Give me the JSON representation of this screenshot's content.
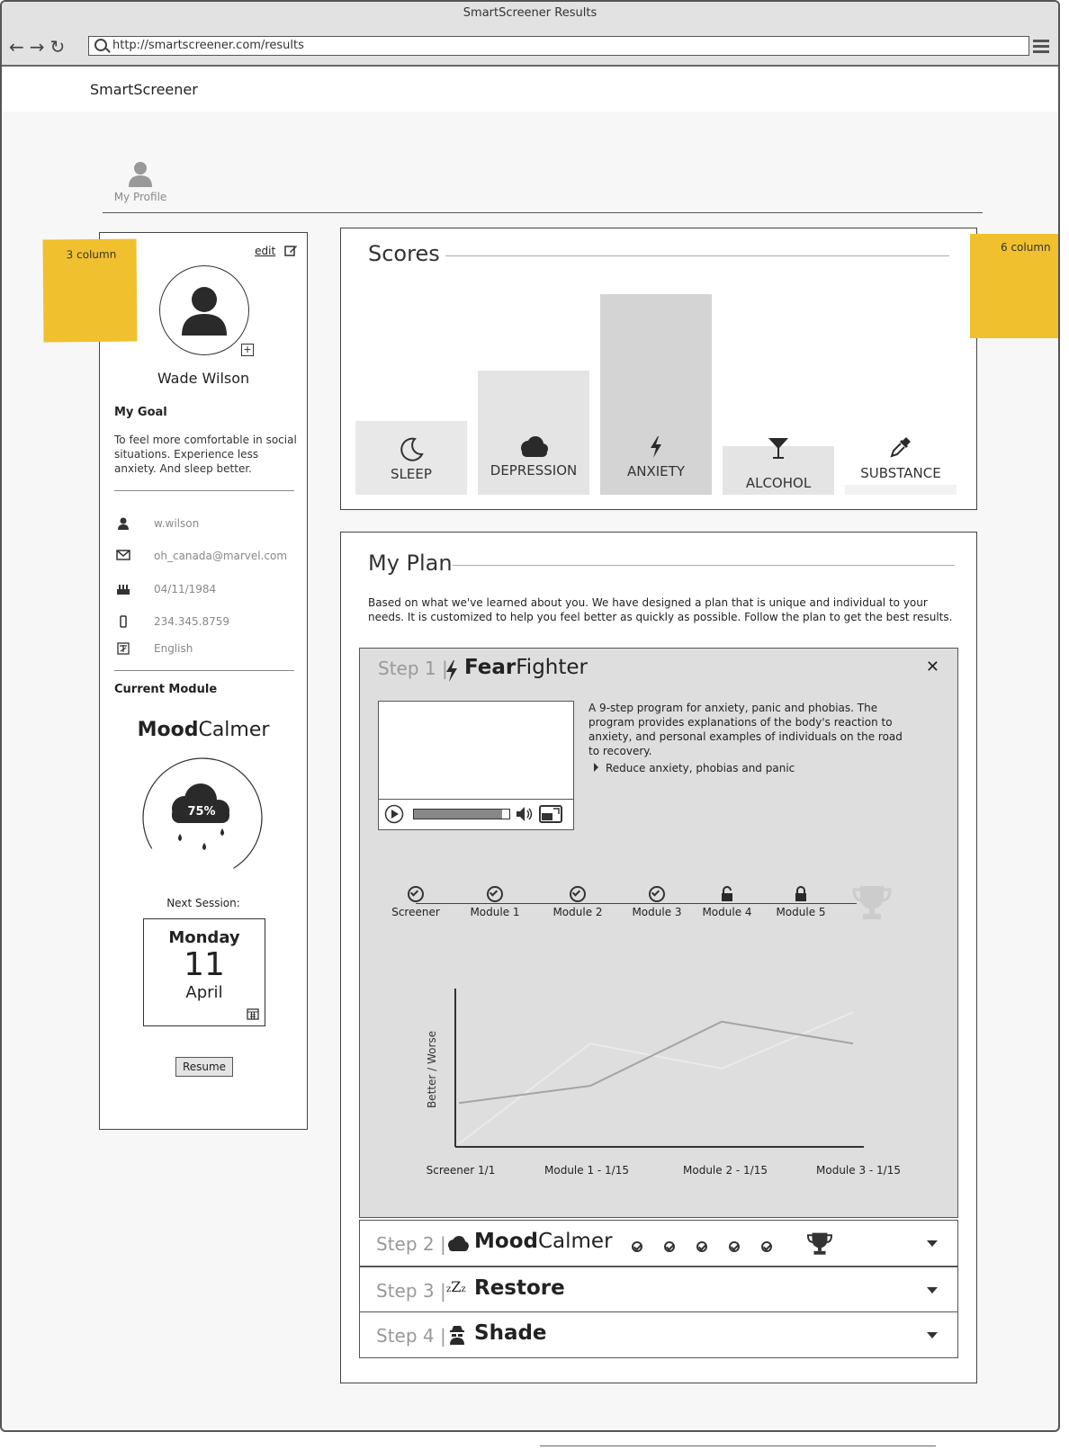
{
  "browser": {
    "title": "SmartScreener Results",
    "url": "http://smartscreener.com/results"
  },
  "app": {
    "brand": "SmartScreener",
    "profile_tab": "My Profile"
  },
  "stickies": {
    "left": "3 column",
    "right": "6 column"
  },
  "profile": {
    "edit_label": "edit",
    "name": "Wade Wilson",
    "goal_heading": "My Goal",
    "goal_text": "To feel more comfortable in social situations.  Experience less anxiety. And sleep better.",
    "username": "w.wilson",
    "email": "oh_canada@marvel.com",
    "birthday": "04/11/1984",
    "phone": "234.345.8759",
    "language": "English",
    "current_module_heading": "Current Module",
    "module_bold": "Mood",
    "module_light": "Calmer",
    "progress_label": "75%",
    "progress": 0.75,
    "next_session_label": "Next Session:",
    "session_day": "Monday",
    "session_date": "11",
    "session_month": "April",
    "resume_label": "Resume"
  },
  "scores": {
    "title": "Scores",
    "categories": [
      {
        "label": "SLEEP",
        "icon": "moon-icon"
      },
      {
        "label": "DEPRESSION",
        "icon": "cloud-icon"
      },
      {
        "label": "ANXIETY",
        "icon": "lightning-icon"
      },
      {
        "label": "ALCOHOL",
        "icon": "cocktail-icon"
      },
      {
        "label": "SUBSTANCE",
        "icon": "eyedropper-icon"
      }
    ]
  },
  "plan": {
    "title": "My Plan",
    "intro": "Based on what we've learned about you.  We have designed a plan that is unique and individual to your needs.  It is customized to help you feel better as quickly as possible.  Follow the plan to get the best results.",
    "step1": {
      "label": "Step 1 |",
      "name_bold": "Fear",
      "name_light": "Fighter",
      "description": "A 9-step program for anxiety, panic and phobias. The program provides explanations of the body's reaction to anxiety, and personal examples of individuals on the road to recovery.",
      "bullet": "Reduce anxiety, phobias and panic",
      "progress_nodes": [
        {
          "label": "Screener",
          "state": "done"
        },
        {
          "label": "Module 1",
          "state": "done"
        },
        {
          "label": "Module 2",
          "state": "done"
        },
        {
          "label": "Module 3",
          "state": "done"
        },
        {
          "label": "Module 4",
          "state": "unlocked"
        },
        {
          "label": "Module 5",
          "state": "locked"
        }
      ]
    },
    "step2": {
      "label": "Step 2 |",
      "name_bold": "Mood",
      "name_light": "Calmer"
    },
    "step3": {
      "label": "Step 3 |",
      "name": "Restore"
    },
    "step4": {
      "label": "Step 4 |",
      "name": "Shade"
    }
  },
  "chart_data": {
    "type": "line",
    "ylabel": "Better / Worse",
    "categories": [
      "Screener 1/1",
      "Module 1 - 1/15",
      "Module 2 - 1/15",
      "Module 3 - 1/15"
    ],
    "series": [
      {
        "values": [
          0.28,
          0.39,
          0.8,
          0.66
        ],
        "color": "#a4a4a4"
      },
      {
        "values": [
          0.02,
          0.66,
          0.5,
          0.86
        ],
        "color": "#eaeaea"
      }
    ],
    "grid": false
  }
}
